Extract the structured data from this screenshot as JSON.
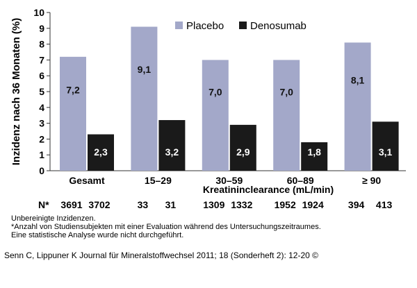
{
  "chart_data": {
    "type": "bar",
    "categories": [
      "Gesamt",
      "15–29",
      "30–59",
      "60–89",
      "≥ 90"
    ],
    "series": [
      {
        "name": "Placebo",
        "values": [
          7.2,
          9.1,
          7.0,
          7.0,
          8.1
        ],
        "labels": [
          "7,2",
          "9,1",
          "7,0",
          "7,0",
          "8,1"
        ],
        "color": "#a3a8c9"
      },
      {
        "name": "Denosumab",
        "values": [
          2.3,
          3.2,
          2.9,
          1.8,
          3.1
        ],
        "labels": [
          "2,3",
          "3,2",
          "2,9",
          "1,8",
          "3,1"
        ],
        "color": "#1a1a1a"
      }
    ],
    "ylabel": "Inzidenz nach 36 Monaten (%)",
    "xlabel": "Kreatininclearance (mL/min)",
    "ylim": [
      0,
      10
    ],
    "yticks": [
      "0",
      "1",
      "2",
      "3",
      "4",
      "5",
      "6",
      "7",
      "8",
      "9",
      "10"
    ],
    "legend_position": "top-center",
    "n_label": "N*",
    "n_values": [
      [
        "3691",
        "3702"
      ],
      [
        "33",
        "31"
      ],
      [
        "1309",
        "1332"
      ],
      [
        "1952",
        "1924"
      ],
      [
        "394",
        "413"
      ]
    ]
  },
  "notes": [
    "Unbereinigte Inzidenzen.",
    "*Anzahl von Studiensubjekten mit einer Evaluation während des Untersuchungszeitraumes.",
    "Eine statistische Analyse wurde nicht durchgeführt."
  ],
  "citation": "Senn C, Lippuner K Journal für Mineralstoffwechsel 2011; 18 (Sonderheft 2): 12-20 ©"
}
